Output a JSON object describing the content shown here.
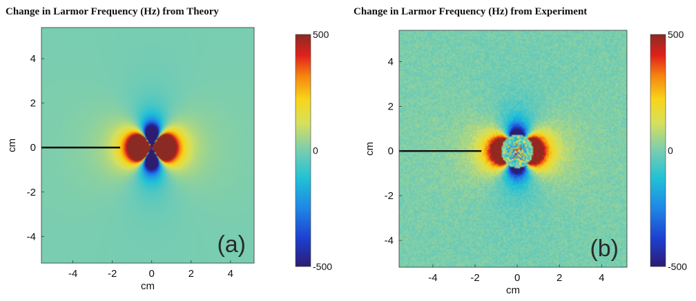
{
  "chart_data": [
    {
      "type": "heatmap",
      "panel_label": "(a)",
      "title": "Change in Larmor Frequency (Hz) from Theory",
      "xlabel": "cm",
      "ylabel": "cm",
      "xlim": [
        -5.6,
        5.2
      ],
      "ylim": [
        -5.2,
        5.4
      ],
      "x_ticks": [
        -4,
        -2,
        0,
        2,
        4
      ],
      "y_ticks": [
        -4,
        -2,
        0,
        2,
        4
      ],
      "colorbar": {
        "min": -500,
        "max": 500,
        "tick_values": [
          500,
          0,
          -500
        ],
        "tick_labels": [
          "500",
          "0",
          "-500"
        ],
        "colormap": "jet"
      },
      "field_model": {
        "kind": "dipole",
        "center": [
          0,
          0
        ],
        "lobe_sign_horizontal": "positive",
        "lobe_sign_vertical": "negative",
        "peak_value": 500
      },
      "annotation_line": {
        "x": [
          -5.6,
          -1.6
        ],
        "y": [
          0,
          0
        ]
      },
      "noisy": false
    },
    {
      "type": "heatmap",
      "panel_label": "(b)",
      "title": "Change in Larmor Frequency (Hz) from Experiment",
      "xlabel": "cm",
      "ylabel": "cm",
      "xlim": [
        -5.6,
        5.2
      ],
      "ylim": [
        -5.2,
        5.4
      ],
      "x_ticks": [
        -4,
        -2,
        0,
        2,
        4
      ],
      "y_ticks": [
        -4,
        -2,
        0,
        2,
        4
      ],
      "colorbar": {
        "min": -500,
        "max": 500,
        "tick_values": [
          500,
          0,
          -500
        ],
        "tick_labels": [
          "500",
          "0",
          "-500"
        ],
        "colormap": "jet"
      },
      "field_model": {
        "kind": "dipole",
        "center": [
          0,
          0
        ],
        "lobe_sign_horizontal": "positive",
        "lobe_sign_vertical": "negative",
        "peak_value": 500
      },
      "annotation_line": {
        "x": [
          -5.6,
          -1.7
        ],
        "y": [
          0,
          0
        ]
      },
      "noisy": true
    }
  ]
}
